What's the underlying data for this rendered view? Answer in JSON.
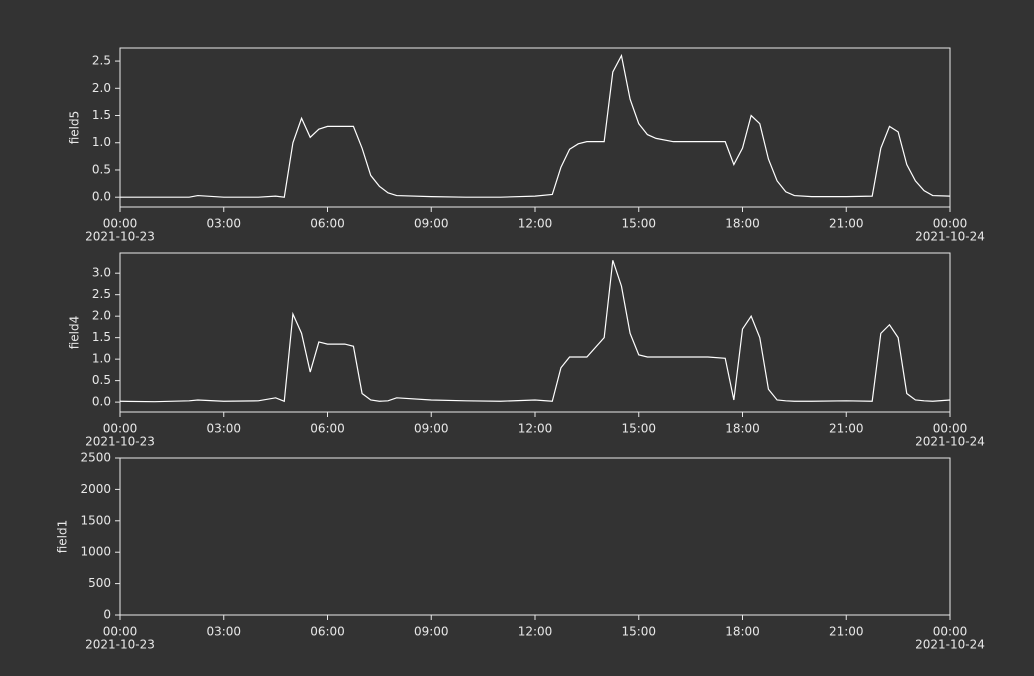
{
  "chart_data": [
    {
      "type": "line",
      "ylabel": "field5",
      "xlim": [
        "2021-10-23 00:00",
        "2021-10-24 00:00"
      ],
      "xticks": [
        {
          "value": "2021-10-23 00:00",
          "label": "00:00"
        },
        {
          "value": "2021-10-23 03:00",
          "label": "03:00"
        },
        {
          "value": "2021-10-23 06:00",
          "label": "06:00"
        },
        {
          "value": "2021-10-23 09:00",
          "label": "09:00"
        },
        {
          "value": "2021-10-23 12:00",
          "label": "12:00"
        },
        {
          "value": "2021-10-23 15:00",
          "label": "15:00"
        },
        {
          "value": "2021-10-23 18:00",
          "label": "18:00"
        },
        {
          "value": "2021-10-23 21:00",
          "label": "21:00"
        },
        {
          "value": "2021-10-24 00:00",
          "label": "00:00"
        }
      ],
      "x_date_labels": [
        {
          "value": "2021-10-23 00:00",
          "label": "2021-10-23"
        },
        {
          "value": "2021-10-24 00:00",
          "label": "2021-10-24"
        }
      ],
      "ylim": [
        -0.18,
        2.74
      ],
      "yticks": [
        {
          "value": 0,
          "label": "0.0"
        },
        0.5,
        {
          "value": 1,
          "label": "1.0"
        },
        1.5,
        {
          "value": 2,
          "label": "2.0"
        },
        2.5
      ],
      "x": [
        "2021-10-23 00:00",
        "2021-10-23 01:00",
        "2021-10-23 02:00",
        "2021-10-23 02:15",
        "2021-10-23 03:00",
        "2021-10-23 04:00",
        "2021-10-23 04:30",
        "2021-10-23 04:45",
        "2021-10-23 05:00",
        "2021-10-23 05:15",
        "2021-10-23 05:30",
        "2021-10-23 05:45",
        "2021-10-23 06:00",
        "2021-10-23 06:30",
        "2021-10-23 06:45",
        "2021-10-23 07:00",
        "2021-10-23 07:15",
        "2021-10-23 07:30",
        "2021-10-23 07:45",
        "2021-10-23 08:00",
        "2021-10-23 09:00",
        "2021-10-23 10:00",
        "2021-10-23 11:00",
        "2021-10-23 12:00",
        "2021-10-23 12:30",
        "2021-10-23 12:45",
        "2021-10-23 13:00",
        "2021-10-23 13:15",
        "2021-10-23 13:30",
        "2021-10-23 14:00",
        "2021-10-23 14:15",
        "2021-10-23 14:30",
        "2021-10-23 14:45",
        "2021-10-23 15:00",
        "2021-10-23 15:15",
        "2021-10-23 15:30",
        "2021-10-23 16:00",
        "2021-10-23 17:00",
        "2021-10-23 17:30",
        "2021-10-23 17:45",
        "2021-10-23 18:00",
        "2021-10-23 18:15",
        "2021-10-23 18:30",
        "2021-10-23 18:45",
        "2021-10-23 19:00",
        "2021-10-23 19:15",
        "2021-10-23 19:30",
        "2021-10-23 20:00",
        "2021-10-23 21:00",
        "2021-10-23 21:45",
        "2021-10-23 22:00",
        "2021-10-23 22:15",
        "2021-10-23 22:30",
        "2021-10-23 22:45",
        "2021-10-23 23:00",
        "2021-10-23 23:15",
        "2021-10-23 23:30",
        "2021-10-24 00:00"
      ],
      "series": [
        {
          "color": "#ffffff",
          "values": [
            0,
            0,
            0,
            0.03,
            0,
            0,
            0.02,
            0,
            1.0,
            1.45,
            1.1,
            1.25,
            1.3,
            1.3,
            1.3,
            0.9,
            0.4,
            0.2,
            0.08,
            0.03,
            0.01,
            0,
            0,
            0.02,
            0.05,
            0.55,
            0.88,
            0.98,
            1.02,
            1.02,
            2.3,
            2.6,
            1.8,
            1.35,
            1.15,
            1.08,
            1.02,
            1.02,
            1.02,
            0.6,
            0.9,
            1.5,
            1.35,
            0.7,
            0.3,
            0.1,
            0.03,
            0.01,
            0.01,
            0.02,
            0.9,
            1.3,
            1.2,
            0.6,
            0.3,
            0.12,
            0.03,
            0.02
          ]
        }
      ]
    },
    {
      "type": "line",
      "ylabel": "field4",
      "xlim": [
        "2021-10-23 00:00",
        "2021-10-24 00:00"
      ],
      "xticks": [
        {
          "value": "2021-10-23 00:00",
          "label": "00:00"
        },
        {
          "value": "2021-10-23 03:00",
          "label": "03:00"
        },
        {
          "value": "2021-10-23 06:00",
          "label": "06:00"
        },
        {
          "value": "2021-10-23 09:00",
          "label": "09:00"
        },
        {
          "value": "2021-10-23 12:00",
          "label": "12:00"
        },
        {
          "value": "2021-10-23 15:00",
          "label": "15:00"
        },
        {
          "value": "2021-10-23 18:00",
          "label": "18:00"
        },
        {
          "value": "2021-10-23 21:00",
          "label": "21:00"
        },
        {
          "value": "2021-10-24 00:00",
          "label": "00:00"
        }
      ],
      "x_date_labels": [
        {
          "value": "2021-10-23 00:00",
          "label": "2021-10-23"
        },
        {
          "value": "2021-10-24 00:00",
          "label": "2021-10-24"
        }
      ],
      "ylim": [
        -0.23,
        3.47
      ],
      "yticks": [
        {
          "value": 0,
          "label": "0.0"
        },
        0.5,
        {
          "value": 1,
          "label": "1.0"
        },
        1.5,
        {
          "value": 2,
          "label": "2.0"
        },
        2.5,
        {
          "value": 3,
          "label": "3.0"
        }
      ],
      "x": [
        "2021-10-23 00:00",
        "2021-10-23 01:00",
        "2021-10-23 02:00",
        "2021-10-23 02:15",
        "2021-10-23 03:00",
        "2021-10-23 04:00",
        "2021-10-23 04:30",
        "2021-10-23 04:45",
        "2021-10-23 05:00",
        "2021-10-23 05:15",
        "2021-10-23 05:30",
        "2021-10-23 05:45",
        "2021-10-23 06:00",
        "2021-10-23 06:30",
        "2021-10-23 06:45",
        "2021-10-23 07:00",
        "2021-10-23 07:15",
        "2021-10-23 07:30",
        "2021-10-23 07:45",
        "2021-10-23 08:00",
        "2021-10-23 09:00",
        "2021-10-23 10:00",
        "2021-10-23 11:00",
        "2021-10-23 12:00",
        "2021-10-23 12:30",
        "2021-10-23 12:45",
        "2021-10-23 13:00",
        "2021-10-23 13:15",
        "2021-10-23 13:30",
        "2021-10-23 14:00",
        "2021-10-23 14:15",
        "2021-10-23 14:30",
        "2021-10-23 14:45",
        "2021-10-23 15:00",
        "2021-10-23 15:15",
        "2021-10-23 15:30",
        "2021-10-23 16:00",
        "2021-10-23 17:00",
        "2021-10-23 17:30",
        "2021-10-23 17:45",
        "2021-10-23 18:00",
        "2021-10-23 18:15",
        "2021-10-23 18:30",
        "2021-10-23 18:45",
        "2021-10-23 19:00",
        "2021-10-23 19:15",
        "2021-10-23 19:30",
        "2021-10-23 20:00",
        "2021-10-23 21:00",
        "2021-10-23 21:45",
        "2021-10-23 22:00",
        "2021-10-23 22:15",
        "2021-10-23 22:30",
        "2021-10-23 22:45",
        "2021-10-23 23:00",
        "2021-10-23 23:15",
        "2021-10-23 23:30",
        "2021-10-24 00:00"
      ],
      "series": [
        {
          "color": "#ffffff",
          "values": [
            0.02,
            0.01,
            0.03,
            0.05,
            0.02,
            0.03,
            0.1,
            0.02,
            2.05,
            1.6,
            0.7,
            1.4,
            1.35,
            1.35,
            1.3,
            0.2,
            0.05,
            0.02,
            0.03,
            0.1,
            0.05,
            0.03,
            0.02,
            0.05,
            0.02,
            0.8,
            1.05,
            1.05,
            1.05,
            1.5,
            3.3,
            2.7,
            1.6,
            1.1,
            1.05,
            1.05,
            1.05,
            1.05,
            1.02,
            0.05,
            1.7,
            2.0,
            1.5,
            0.3,
            0.05,
            0.03,
            0.02,
            0.02,
            0.03,
            0.02,
            1.6,
            1.8,
            1.5,
            0.2,
            0.05,
            0.03,
            0.02,
            0.05
          ]
        }
      ]
    },
    {
      "type": "line",
      "ylabel": "field1",
      "xlim": [
        "2021-10-23 00:00",
        "2021-10-24 00:00"
      ],
      "xticks": [
        {
          "value": "2021-10-23 00:00",
          "label": "00:00"
        },
        {
          "value": "2021-10-23 03:00",
          "label": "03:00"
        },
        {
          "value": "2021-10-23 06:00",
          "label": "06:00"
        },
        {
          "value": "2021-10-23 09:00",
          "label": "09:00"
        },
        {
          "value": "2021-10-23 12:00",
          "label": "12:00"
        },
        {
          "value": "2021-10-23 15:00",
          "label": "15:00"
        },
        {
          "value": "2021-10-23 18:00",
          "label": "18:00"
        },
        {
          "value": "2021-10-23 21:00",
          "label": "21:00"
        },
        {
          "value": "2021-10-24 00:00",
          "label": "00:00"
        }
      ],
      "x_date_labels": [
        {
          "value": "2021-10-23 00:00",
          "label": "2021-10-23"
        },
        {
          "value": "2021-10-24 00:00",
          "label": "2021-10-24"
        }
      ],
      "ylim": [
        0,
        2500
      ],
      "yticks": [
        0,
        500,
        1000,
        1500,
        2000,
        2500
      ]
    }
  ]
}
